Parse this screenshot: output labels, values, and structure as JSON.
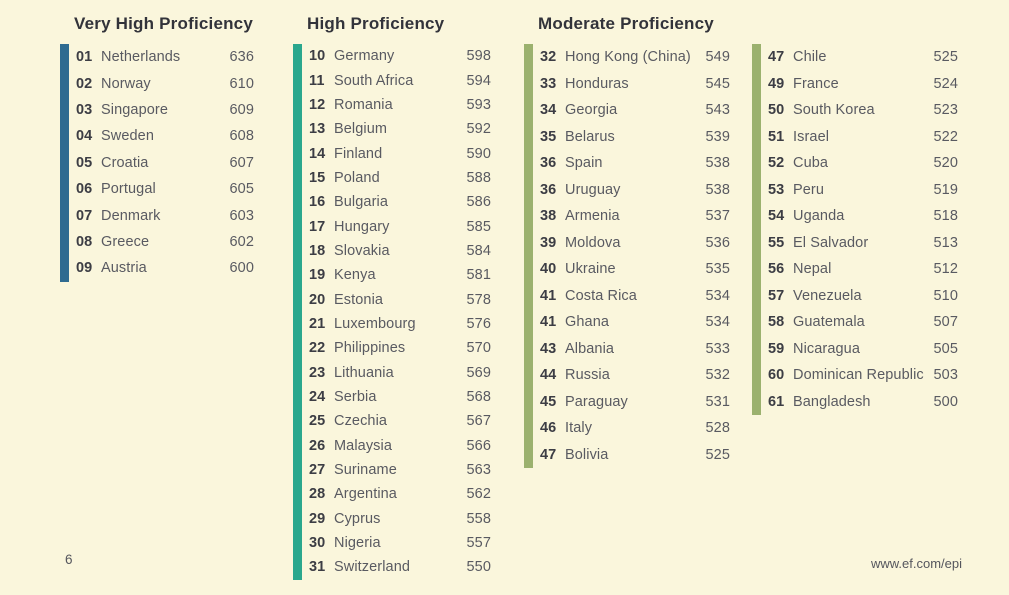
{
  "page": {
    "number": "6",
    "website_url": "www.ef.com/epi"
  },
  "colors": {
    "background": "#FAF6DC",
    "very_high_band": "#2F6B90",
    "high_band": "#2AA78D",
    "moderate_band": "#9BB16E"
  },
  "groups": [
    {
      "title": "Very High Proficiency",
      "band": "very_high_band",
      "rows": [
        {
          "rank": "01",
          "country": "Netherlands",
          "score": "636"
        },
        {
          "rank": "02",
          "country": "Norway",
          "score": "610"
        },
        {
          "rank": "03",
          "country": "Singapore",
          "score": "609"
        },
        {
          "rank": "04",
          "country": "Sweden",
          "score": "608"
        },
        {
          "rank": "05",
          "country": "Croatia",
          "score": "607"
        },
        {
          "rank": "06",
          "country": "Portugal",
          "score": "605"
        },
        {
          "rank": "07",
          "country": "Denmark",
          "score": "603"
        },
        {
          "rank": "08",
          "country": "Greece",
          "score": "602"
        },
        {
          "rank": "09",
          "country": "Austria",
          "score": "600"
        }
      ]
    },
    {
      "title": "High Proficiency",
      "band": "high_band",
      "rows": [
        {
          "rank": "10",
          "country": "Germany",
          "score": "598"
        },
        {
          "rank": "11",
          "country": "South Africa",
          "score": "594"
        },
        {
          "rank": "12",
          "country": "Romania",
          "score": "593"
        },
        {
          "rank": "13",
          "country": "Belgium",
          "score": "592"
        },
        {
          "rank": "14",
          "country": "Finland",
          "score": "590"
        },
        {
          "rank": "15",
          "country": "Poland",
          "score": "588"
        },
        {
          "rank": "16",
          "country": "Bulgaria",
          "score": "586"
        },
        {
          "rank": "17",
          "country": "Hungary",
          "score": "585"
        },
        {
          "rank": "18",
          "country": "Slovakia",
          "score": "584"
        },
        {
          "rank": "19",
          "country": "Kenya",
          "score": "581"
        },
        {
          "rank": "20",
          "country": "Estonia",
          "score": "578"
        },
        {
          "rank": "21",
          "country": "Luxembourg",
          "score": "576"
        },
        {
          "rank": "22",
          "country": "Philippines",
          "score": "570"
        },
        {
          "rank": "23",
          "country": "Lithuania",
          "score": "569"
        },
        {
          "rank": "24",
          "country": "Serbia",
          "score": "568"
        },
        {
          "rank": "25",
          "country": "Czechia",
          "score": "567"
        },
        {
          "rank": "26",
          "country": "Malaysia",
          "score": "566"
        },
        {
          "rank": "27",
          "country": "Suriname",
          "score": "563"
        },
        {
          "rank": "28",
          "country": "Argentina",
          "score": "562"
        },
        {
          "rank": "29",
          "country": "Cyprus",
          "score": "558"
        },
        {
          "rank": "30",
          "country": "Nigeria",
          "score": "557"
        },
        {
          "rank": "31",
          "country": "Switzerland",
          "score": "550"
        }
      ]
    },
    {
      "title": "Moderate Proficiency",
      "band": "moderate_band",
      "rows": [
        {
          "rank": "32",
          "country": "Hong Kong (China)",
          "score": "549"
        },
        {
          "rank": "33",
          "country": "Honduras",
          "score": "545"
        },
        {
          "rank": "34",
          "country": "Georgia",
          "score": "543"
        },
        {
          "rank": "35",
          "country": "Belarus",
          "score": "539"
        },
        {
          "rank": "36",
          "country": "Spain",
          "score": "538"
        },
        {
          "rank": "36",
          "country": "Uruguay",
          "score": "538"
        },
        {
          "rank": "38",
          "country": "Armenia",
          "score": "537"
        },
        {
          "rank": "39",
          "country": "Moldova",
          "score": "536"
        },
        {
          "rank": "40",
          "country": "Ukraine",
          "score": "535"
        },
        {
          "rank": "41",
          "country": "Costa Rica",
          "score": "534"
        },
        {
          "rank": "41",
          "country": "Ghana",
          "score": "534"
        },
        {
          "rank": "43",
          "country": "Albania",
          "score": "533"
        },
        {
          "rank": "44",
          "country": "Russia",
          "score": "532"
        },
        {
          "rank": "45",
          "country": "Paraguay",
          "score": "531"
        },
        {
          "rank": "46",
          "country": "Italy",
          "score": "528"
        },
        {
          "rank": "47",
          "country": "Bolivia",
          "score": "525"
        }
      ]
    },
    {
      "title": "",
      "band": "moderate_band",
      "rows": [
        {
          "rank": "47",
          "country": "Chile",
          "score": "525"
        },
        {
          "rank": "49",
          "country": "France",
          "score": "524"
        },
        {
          "rank": "50",
          "country": "South Korea",
          "score": "523"
        },
        {
          "rank": "51",
          "country": "Israel",
          "score": "522"
        },
        {
          "rank": "52",
          "country": "Cuba",
          "score": "520"
        },
        {
          "rank": "53",
          "country": "Peru",
          "score": "519"
        },
        {
          "rank": "54",
          "country": "Uganda",
          "score": "518"
        },
        {
          "rank": "55",
          "country": "El Salvador",
          "score": "513"
        },
        {
          "rank": "56",
          "country": "Nepal",
          "score": "512"
        },
        {
          "rank": "57",
          "country": "Venezuela",
          "score": "510"
        },
        {
          "rank": "58",
          "country": "Guatemala",
          "score": "507"
        },
        {
          "rank": "59",
          "country": "Nicaragua",
          "score": "505"
        },
        {
          "rank": "60",
          "country": "Dominican Republic",
          "score": "503"
        },
        {
          "rank": "61",
          "country": "Bangladesh",
          "score": "500"
        }
      ]
    }
  ]
}
